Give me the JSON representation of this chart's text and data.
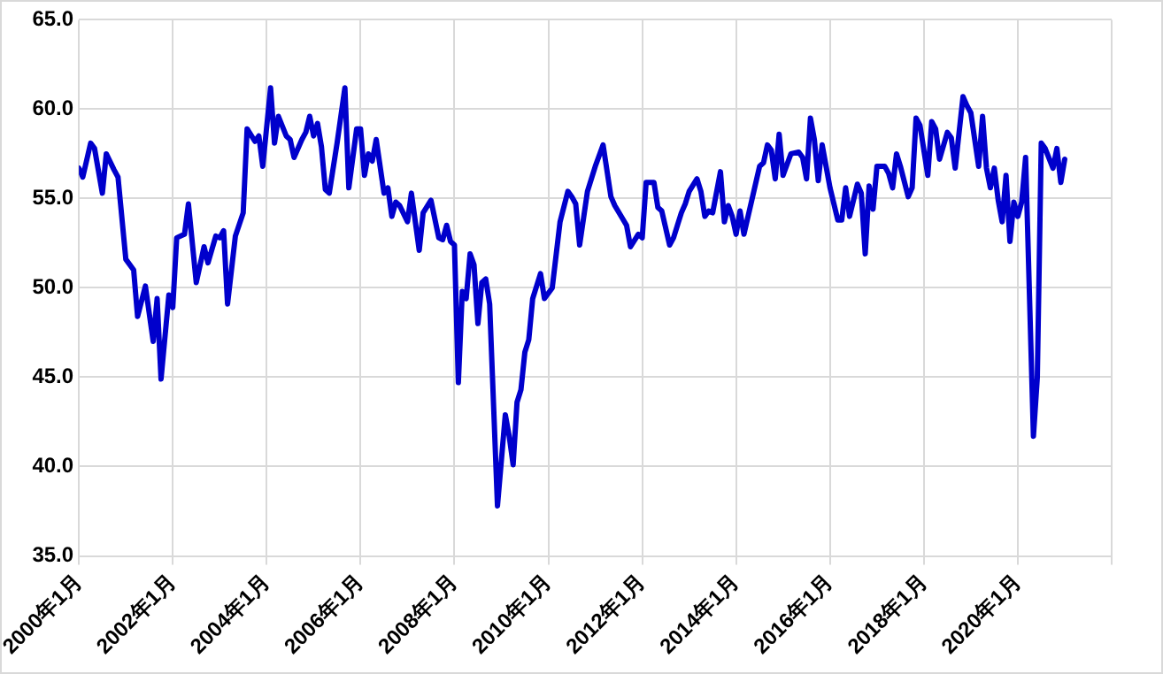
{
  "chart_data": {
    "type": "line",
    "x": [
      "2000-01",
      "2000-02",
      "2000-04",
      "2000-05",
      "2000-07",
      "2000-08",
      "2000-10",
      "2000-11",
      "2001-01",
      "2001-03",
      "2001-04",
      "2001-06",
      "2001-08",
      "2001-09",
      "2001-10",
      "2001-12",
      "2002-01",
      "2002-02",
      "2002-04",
      "2002-05",
      "2002-07",
      "2002-09",
      "2002-10",
      "2002-12",
      "2003-01",
      "2003-02",
      "2003-03",
      "2003-05",
      "2003-07",
      "2003-08",
      "2003-10",
      "2003-11",
      "2003-12",
      "2004-02",
      "2004-03",
      "2004-04",
      "2004-06",
      "2004-07",
      "2004-08",
      "2004-10",
      "2004-11",
      "2004-12",
      "2005-01",
      "2005-02",
      "2005-03",
      "2005-04",
      "2005-05",
      "2005-07",
      "2005-09",
      "2005-10",
      "2005-12",
      "2006-01",
      "2006-02",
      "2006-03",
      "2006-04",
      "2006-05",
      "2006-07",
      "2006-08",
      "2006-09",
      "2006-10",
      "2006-11",
      "2007-01",
      "2007-02",
      "2007-04",
      "2007-05",
      "2007-07",
      "2007-09",
      "2007-10",
      "2007-11",
      "2007-12",
      "2008-01",
      "2008-02",
      "2008-03",
      "2008-04",
      "2008-05",
      "2008-06",
      "2008-07",
      "2008-08",
      "2008-09",
      "2008-10",
      "2008-12",
      "2009-02",
      "2009-03",
      "2009-04",
      "2009-05",
      "2009-06",
      "2009-07",
      "2009-08",
      "2009-09",
      "2009-11",
      "2009-12",
      "2010-02",
      "2010-04",
      "2010-06",
      "2010-07",
      "2010-08",
      "2010-09",
      "2010-11",
      "2011-01",
      "2011-03",
      "2011-05",
      "2011-06",
      "2011-09",
      "2011-10",
      "2011-12",
      "2012-01",
      "2012-02",
      "2012-04",
      "2012-05",
      "2012-06",
      "2012-08",
      "2012-09",
      "2012-11",
      "2012-12",
      "2013-01",
      "2013-03",
      "2013-04",
      "2013-05",
      "2013-06",
      "2013-07",
      "2013-09",
      "2013-10",
      "2013-11",
      "2013-12",
      "2014-01",
      "2014-02",
      "2014-03",
      "2014-05",
      "2014-07",
      "2014-08",
      "2014-09",
      "2014-10",
      "2014-11",
      "2014-12",
      "2015-01",
      "2015-03",
      "2015-05",
      "2015-06",
      "2015-07",
      "2015-08",
      "2015-09",
      "2015-10",
      "2015-11",
      "2016-01",
      "2016-02",
      "2016-03",
      "2016-04",
      "2016-05",
      "2016-06",
      "2016-08",
      "2016-09",
      "2016-10",
      "2016-11",
      "2016-12",
      "2017-01",
      "2017-03",
      "2017-04",
      "2017-05",
      "2017-06",
      "2017-07",
      "2017-09",
      "2017-10",
      "2017-11",
      "2017-12",
      "2018-02",
      "2018-03",
      "2018-04",
      "2018-05",
      "2018-07",
      "2018-08",
      "2018-09",
      "2018-11",
      "2018-12",
      "2019-01",
      "2019-03",
      "2019-04",
      "2019-05",
      "2019-06",
      "2019-07",
      "2019-08",
      "2019-09",
      "2019-10",
      "2019-11",
      "2019-12",
      "2020-01",
      "2020-02",
      "2020-03",
      "2020-05",
      "2020-06",
      "2020-07",
      "2020-08",
      "2020-10",
      "2020-11",
      "2020-12",
      "2021-01"
    ],
    "series": [
      {
        "color": "#0000cc",
        "values": [
          56.7,
          56.2,
          58.1,
          57.8,
          55.3,
          57.5,
          56.6,
          56.2,
          51.6,
          51.0,
          48.4,
          50.1,
          47.0,
          49.4,
          44.9,
          49.6,
          48.9,
          52.8,
          53.0,
          54.7,
          50.3,
          52.3,
          51.4,
          52.9,
          52.8,
          53.2,
          49.1,
          52.9,
          54.2,
          58.9,
          58.2,
          58.5,
          56.8,
          61.2,
          58.1,
          59.6,
          58.5,
          58.3,
          57.3,
          58.3,
          58.7,
          59.6,
          58.5,
          59.2,
          57.9,
          55.5,
          55.3,
          58.1,
          61.2,
          55.6,
          58.9,
          58.9,
          56.3,
          57.5,
          57.1,
          58.3,
          55.3,
          55.6,
          54.0,
          54.8,
          54.6,
          53.7,
          55.3,
          52.1,
          54.2,
          54.9,
          52.8,
          52.7,
          53.5,
          52.6,
          52.4,
          44.7,
          49.8,
          49.4,
          51.9,
          51.3,
          48.0,
          50.3,
          50.5,
          49.1,
          37.8,
          42.9,
          41.7,
          40.1,
          43.6,
          44.3,
          46.4,
          47.1,
          49.4,
          50.8,
          49.4,
          50.0,
          53.7,
          55.4,
          55.1,
          54.7,
          52.4,
          55.4,
          56.8,
          58.0,
          55.1,
          54.6,
          53.5,
          52.3,
          53.0,
          52.8,
          55.9,
          55.9,
          54.5,
          54.3,
          52.4,
          52.8,
          54.2,
          54.7,
          55.4,
          56.1,
          55.4,
          54.0,
          54.3,
          54.2,
          56.5,
          53.7,
          54.6,
          54.0,
          53.0,
          54.3,
          53.0,
          54.9,
          56.8,
          57.0,
          58.0,
          57.7,
          56.1,
          58.6,
          56.3,
          57.5,
          57.6,
          57.3,
          56.1,
          59.5,
          58.3,
          56.0,
          58.0,
          55.6,
          54.7,
          53.8,
          53.8,
          55.6,
          54.0,
          55.8,
          55.3,
          51.9,
          55.7,
          54.4,
          56.8,
          56.8,
          56.4,
          55.6,
          57.5,
          56.8,
          55.1,
          55.6,
          59.5,
          59.1,
          56.3,
          59.3,
          58.9,
          57.2,
          58.7,
          58.4,
          56.7,
          60.7,
          60.2,
          59.8,
          56.8,
          59.6,
          56.7,
          55.6,
          56.7,
          54.9,
          53.7,
          56.3,
          52.6,
          54.8,
          54.0,
          54.8,
          57.3,
          41.7,
          45.0,
          58.1,
          57.8,
          56.7,
          57.8,
          55.9,
          57.2
        ]
      }
    ],
    "xlim": [
      "2000-01",
      "2022-01"
    ],
    "xticks": [
      {
        "value": "2000-01",
        "label": "2000年1月"
      },
      {
        "value": "2002-01",
        "label": "2002年1月"
      },
      {
        "value": "2004-01",
        "label": "2004年1月"
      },
      {
        "value": "2006-01",
        "label": "2006年1月"
      },
      {
        "value": "2008-01",
        "label": "2008年1月"
      },
      {
        "value": "2010-01",
        "label": "2010年1月"
      },
      {
        "value": "2012-01",
        "label": "2012年1月"
      },
      {
        "value": "2014-01",
        "label": "2014年1月"
      },
      {
        "value": "2016-01",
        "label": "2016年1月"
      },
      {
        "value": "2018-01",
        "label": "2018年1月"
      },
      {
        "value": "2020-01",
        "label": "2020年1月"
      },
      {
        "value": "2022-01",
        "label": null
      }
    ],
    "ylim": [
      35,
      65
    ],
    "yticks": [
      {
        "value": 35,
        "label": "35.0"
      },
      {
        "value": 40,
        "label": "40.0"
      },
      {
        "value": 45,
        "label": "45.0"
      },
      {
        "value": 50,
        "label": "50.0"
      },
      {
        "value": 55,
        "label": "55.0"
      },
      {
        "value": 60,
        "label": "60.0"
      },
      {
        "value": 65,
        "label": "65.0"
      }
    ],
    "grid": true,
    "legend": false,
    "marker": "none",
    "line_style": "solid"
  }
}
